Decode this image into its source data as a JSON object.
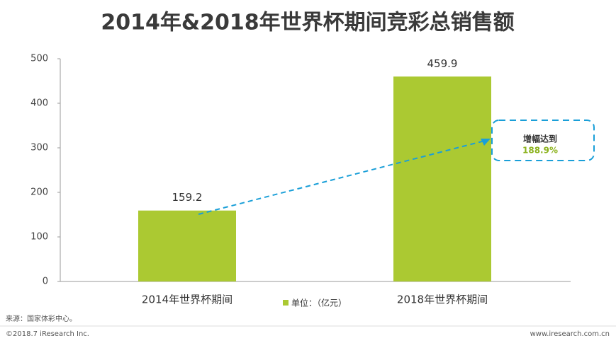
{
  "chart_data": {
    "type": "bar",
    "title": "2014年&2018年世界杯期间竞彩总销售额",
    "categories": [
      "2014年世界杯期间",
      "2018年世界杯期间"
    ],
    "series": [
      {
        "name": "单位：（亿元）",
        "color": "#abc932",
        "values": [
          159.2,
          459.9
        ]
      }
    ],
    "ylim": [
      0,
      500
    ],
    "yticks": [
      0,
      100,
      200,
      300,
      400,
      500
    ],
    "grid": false,
    "annotation": {
      "text": "增幅达到",
      "value": "188.9%"
    }
  },
  "footer": {
    "source": "来源：国家体彩中心。",
    "copyright": "©2018.7 iResearch Inc.",
    "website": "www.iresearch.com.cn"
  }
}
